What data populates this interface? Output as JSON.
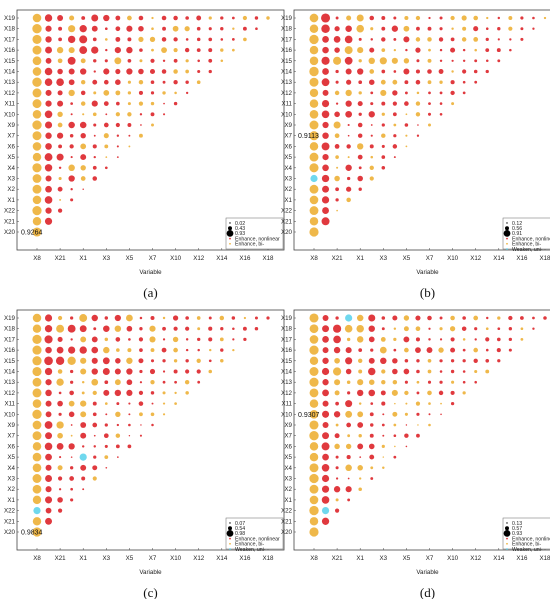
{
  "chart_data": [
    {
      "type": "scatter",
      "panel": "(a)",
      "xlabel": "Variable",
      "x_ticks": [
        "X8",
        "X21",
        "X1",
        "X3",
        "X5",
        "X7",
        "X10",
        "X12",
        "X14",
        "X16",
        "X18"
      ],
      "y_ticks": [
        "X19",
        "X18",
        "X17",
        "X16",
        "X15",
        "X14",
        "X13",
        "X12",
        "X11",
        "X10",
        "X9",
        "X7",
        "X6",
        "X5",
        "X4",
        "X3",
        "X2",
        "X1",
        "X22",
        "X21",
        "X20"
      ],
      "annotation": "0.9264",
      "legend": {
        "sizes": [
          "0.02",
          "0.43",
          "0.93"
        ],
        "entries": [
          {
            "label": "Enhance, nonlinear",
            "color": "#e0393e"
          },
          {
            "label": "Enhance, bi-",
            "color": "#efb84a"
          }
        ]
      },
      "special_cells": []
    },
    {
      "type": "scatter",
      "panel": "(b)",
      "xlabel": "Variable",
      "x_ticks": [
        "X8",
        "X21",
        "X1",
        "X3",
        "X5",
        "X7",
        "X10",
        "X12",
        "X14",
        "X16",
        "X18"
      ],
      "y_ticks": [
        "X19",
        "X18",
        "X17",
        "X16",
        "X15",
        "X14",
        "X13",
        "X12",
        "X11",
        "X10",
        "X9",
        "X7",
        "X6",
        "X5",
        "X4",
        "X3",
        "X2",
        "X1",
        "X22",
        "X21",
        "X20"
      ],
      "annotation": "0.9113",
      "legend": {
        "sizes": [
          "0.12",
          "0.56",
          "0.91"
        ],
        "entries": [
          {
            "label": "Enhance, nonlinear",
            "color": "#e0393e"
          },
          {
            "label": "Enhance, bi-",
            "color": "#efb84a"
          },
          {
            "label": "Weaken, uni-",
            "color": "#6fd8ee"
          }
        ]
      },
      "special_cells": [
        {
          "row": "X3",
          "col": 0
        }
      ]
    },
    {
      "type": "scatter",
      "panel": "(c)",
      "xlabel": "Variable",
      "x_ticks": [
        "X8",
        "X21",
        "X1",
        "X3",
        "X5",
        "X7",
        "X10",
        "X12",
        "X14",
        "X16",
        "X18"
      ],
      "y_ticks": [
        "X19",
        "X18",
        "X17",
        "X16",
        "X15",
        "X14",
        "X13",
        "X12",
        "X11",
        "X10",
        "X9",
        "X7",
        "X6",
        "X5",
        "X4",
        "X3",
        "X2",
        "X1",
        "X22",
        "X21",
        "X20"
      ],
      "annotation": "0.9834",
      "legend": {
        "sizes": [
          "0.07",
          "0.54",
          "0.98"
        ],
        "entries": [
          {
            "label": "Enhance, nonlinear",
            "color": "#e0393e"
          },
          {
            "label": "Enhance, bi-",
            "color": "#efb84a"
          },
          {
            "label": "Weaken, uni-",
            "color": "#6fd8ee"
          }
        ]
      },
      "special_cells": [
        {
          "row": "X22",
          "col": 0
        },
        {
          "row": "X5",
          "col": 4
        }
      ]
    },
    {
      "type": "scatter",
      "panel": "(d)",
      "xlabel": "Variable",
      "x_ticks": [
        "X8",
        "X21",
        "X1",
        "X3",
        "X5",
        "X7",
        "X10",
        "X12",
        "X14",
        "X16",
        "X18"
      ],
      "y_ticks": [
        "X19",
        "X18",
        "X17",
        "X16",
        "X15",
        "X14",
        "X13",
        "X12",
        "X11",
        "X10",
        "X9",
        "X7",
        "X6",
        "X5",
        "X4",
        "X3",
        "X2",
        "X1",
        "X22",
        "X21",
        "X20"
      ],
      "annotation": "0.9307",
      "legend": {
        "sizes": [
          "0.13",
          "0.57",
          "0.93"
        ],
        "entries": [
          {
            "label": "Enhance, nonlinear",
            "color": "#e0393e"
          },
          {
            "label": "Enhance, bi-",
            "color": "#efb84a"
          },
          {
            "label": "Weaken, uni-",
            "color": "#6fd8ee"
          }
        ]
      },
      "special_cells": [
        {
          "row": "X22",
          "col": 1
        },
        {
          "row": "X19",
          "col": 3
        }
      ]
    }
  ]
}
